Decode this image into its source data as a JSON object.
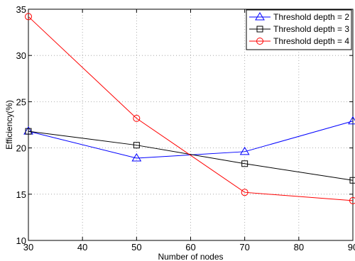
{
  "chart_data": {
    "type": "line",
    "title": "",
    "xlabel": "Number of nodes",
    "ylabel": "Efficiency(%)",
    "xlim": [
      30,
      90
    ],
    "ylim": [
      10,
      35
    ],
    "xticks": [
      30,
      40,
      50,
      60,
      70,
      80,
      90
    ],
    "yticks": [
      10,
      15,
      20,
      25,
      30,
      35
    ],
    "grid": true,
    "legend_position": "top-right",
    "x": [
      30,
      50,
      70,
      90
    ],
    "series": [
      {
        "name": "Threshold depth = 2",
        "values": [
          21.8,
          18.9,
          19.6,
          22.9
        ],
        "color": "#0000ff",
        "marker": "triangle"
      },
      {
        "name": "Threshold depth = 3",
        "values": [
          21.8,
          20.3,
          18.3,
          16.5
        ],
        "color": "#000000",
        "marker": "square"
      },
      {
        "name": "Threshold depth = 4",
        "values": [
          34.2,
          23.2,
          15.2,
          14.3
        ],
        "color": "#ff0000",
        "marker": "circle"
      }
    ]
  }
}
